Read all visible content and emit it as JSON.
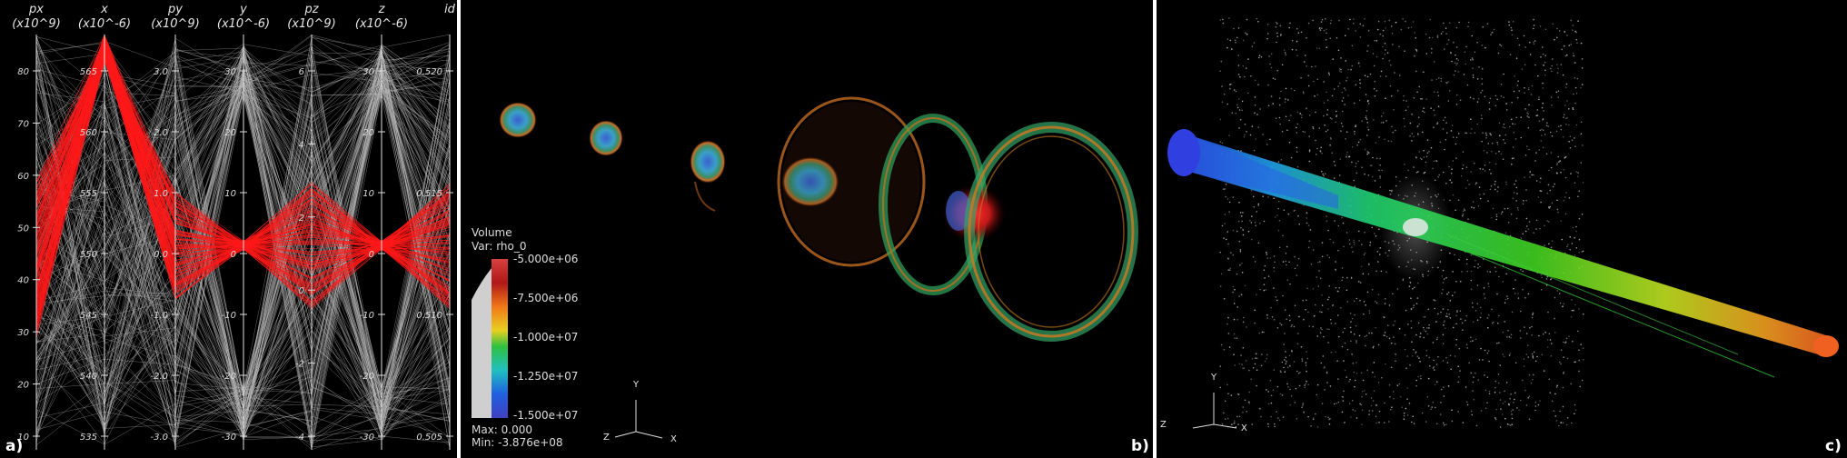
{
  "panel_a": {
    "label": "a)",
    "axes": [
      {
        "name": "px",
        "unit": "(x10^9)",
        "ticks": [
          "80",
          "70",
          "60",
          "50",
          "40",
          "30",
          "20",
          "10"
        ]
      },
      {
        "name": "x",
        "unit": "(x10^-6)",
        "ticks": [
          "565",
          "560",
          "555",
          "550",
          "545",
          "540",
          "535"
        ]
      },
      {
        "name": "py",
        "unit": "(x10^9)",
        "ticks": [
          "3.0",
          "2.0",
          "1.0",
          "0.0",
          "-1.0",
          "-2.0",
          "-3.0"
        ]
      },
      {
        "name": "y",
        "unit": "(x10^-6)",
        "ticks": [
          "30",
          "20",
          "10",
          "0",
          "-10",
          "-20",
          "-30"
        ]
      },
      {
        "name": "pz",
        "unit": "(x10^9)",
        "ticks": [
          "6",
          "4",
          "2",
          "0",
          "-2",
          "-4"
        ]
      },
      {
        "name": "z",
        "unit": "(x10^-6)",
        "ticks": [
          "30",
          "20",
          "10",
          "0",
          "-10",
          "-20",
          "-30"
        ]
      },
      {
        "name": "id",
        "unit": "",
        "ticks": [
          "0.520",
          "0.515",
          "0.510",
          "0.505"
        ]
      }
    ],
    "colors": {
      "context": "#bfbfbf",
      "selected": "#ff1a1a"
    }
  },
  "panel_b": {
    "label": "b)",
    "legend": {
      "title": "Volume",
      "var": "Var: rho_0",
      "ticks": [
        "-5.000e+06",
        "-7.500e+06",
        "-1.000e+07",
        "-1.250e+07",
        "-1.500e+07"
      ],
      "max": "Max:  0.000",
      "min": "Min: -3.876e+08"
    },
    "triad": {
      "y": "Y",
      "z": "Z",
      "x": "X"
    }
  },
  "panel_c": {
    "label": "c)",
    "triad": {
      "y": "Y",
      "z": "Z",
      "x": "X"
    }
  }
}
